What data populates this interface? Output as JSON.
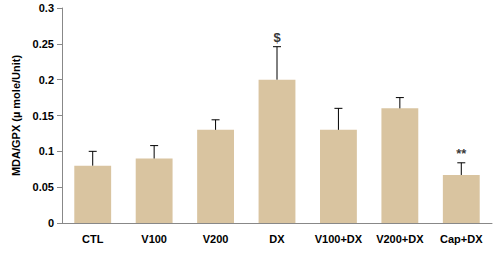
{
  "chart_data": {
    "type": "bar",
    "y_label": "MDA/GPX (µ mole/Unit)",
    "categories": [
      "CTL",
      "V100",
      "V200",
      "DX",
      "V100+DX",
      "V200+DX",
      "Cap+DX"
    ],
    "values": [
      0.08,
      0.09,
      0.13,
      0.2,
      0.13,
      0.16,
      0.067
    ],
    "errors": [
      0.02,
      0.018,
      0.014,
      0.046,
      0.03,
      0.015,
      0.017
    ],
    "color": "#d9c4a0",
    "ylim": [
      0,
      0.3
    ],
    "yticks": [
      0,
      0.05,
      0.1,
      0.15,
      0.2,
      0.25,
      0.3
    ],
    "grid": false,
    "annotations": [
      {
        "category": "DX",
        "text": "$"
      },
      {
        "category": "Cap+DX",
        "text": "**"
      }
    ]
  }
}
